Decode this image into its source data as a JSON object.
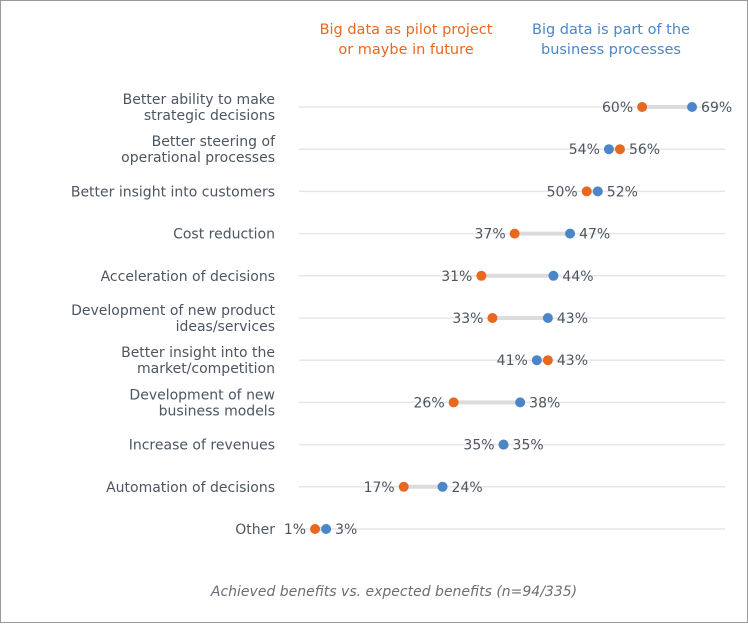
{
  "chart_data": {
    "type": "dumbbell",
    "legend": {
      "placement": "top",
      "entries": [
        {
          "name": [
            "Big data as pilot project",
            "or maybe in future"
          ],
          "color": "#e8681f"
        },
        {
          "name": [
            "Big data is part of the",
            "business processes"
          ],
          "color": "#4a86c8"
        }
      ]
    },
    "categories": [
      [
        "Better ability to make",
        "strategic decisions"
      ],
      [
        "Better steering of",
        "operational processes"
      ],
      [
        "Better insight into customers"
      ],
      [
        "Cost reduction"
      ],
      [
        "Acceleration of decisions"
      ],
      [
        "Development of new product",
        "ideas/services"
      ],
      [
        "Better insight into the",
        "market/competition"
      ],
      [
        "Development of new",
        "business models"
      ],
      [
        "Increase of revenues"
      ],
      [
        "Automation of decisions"
      ],
      [
        "Other"
      ]
    ],
    "series": [
      {
        "name": "Big data as pilot project or maybe in future",
        "color": "#e8681f",
        "values": [
          60,
          56,
          50,
          37,
          31,
          33,
          43,
          26,
          35,
          17,
          1
        ]
      },
      {
        "name": "Big data is part of the business processes",
        "color": "#4a86c8",
        "values": [
          69,
          54,
          52,
          47,
          44,
          43,
          41,
          38,
          35,
          24,
          3
        ]
      }
    ],
    "value_suffix": "%",
    "xlim": [
      0,
      75
    ],
    "grid": true,
    "footnote": "Achieved benefits vs. expected benefits (n=94/335)"
  }
}
